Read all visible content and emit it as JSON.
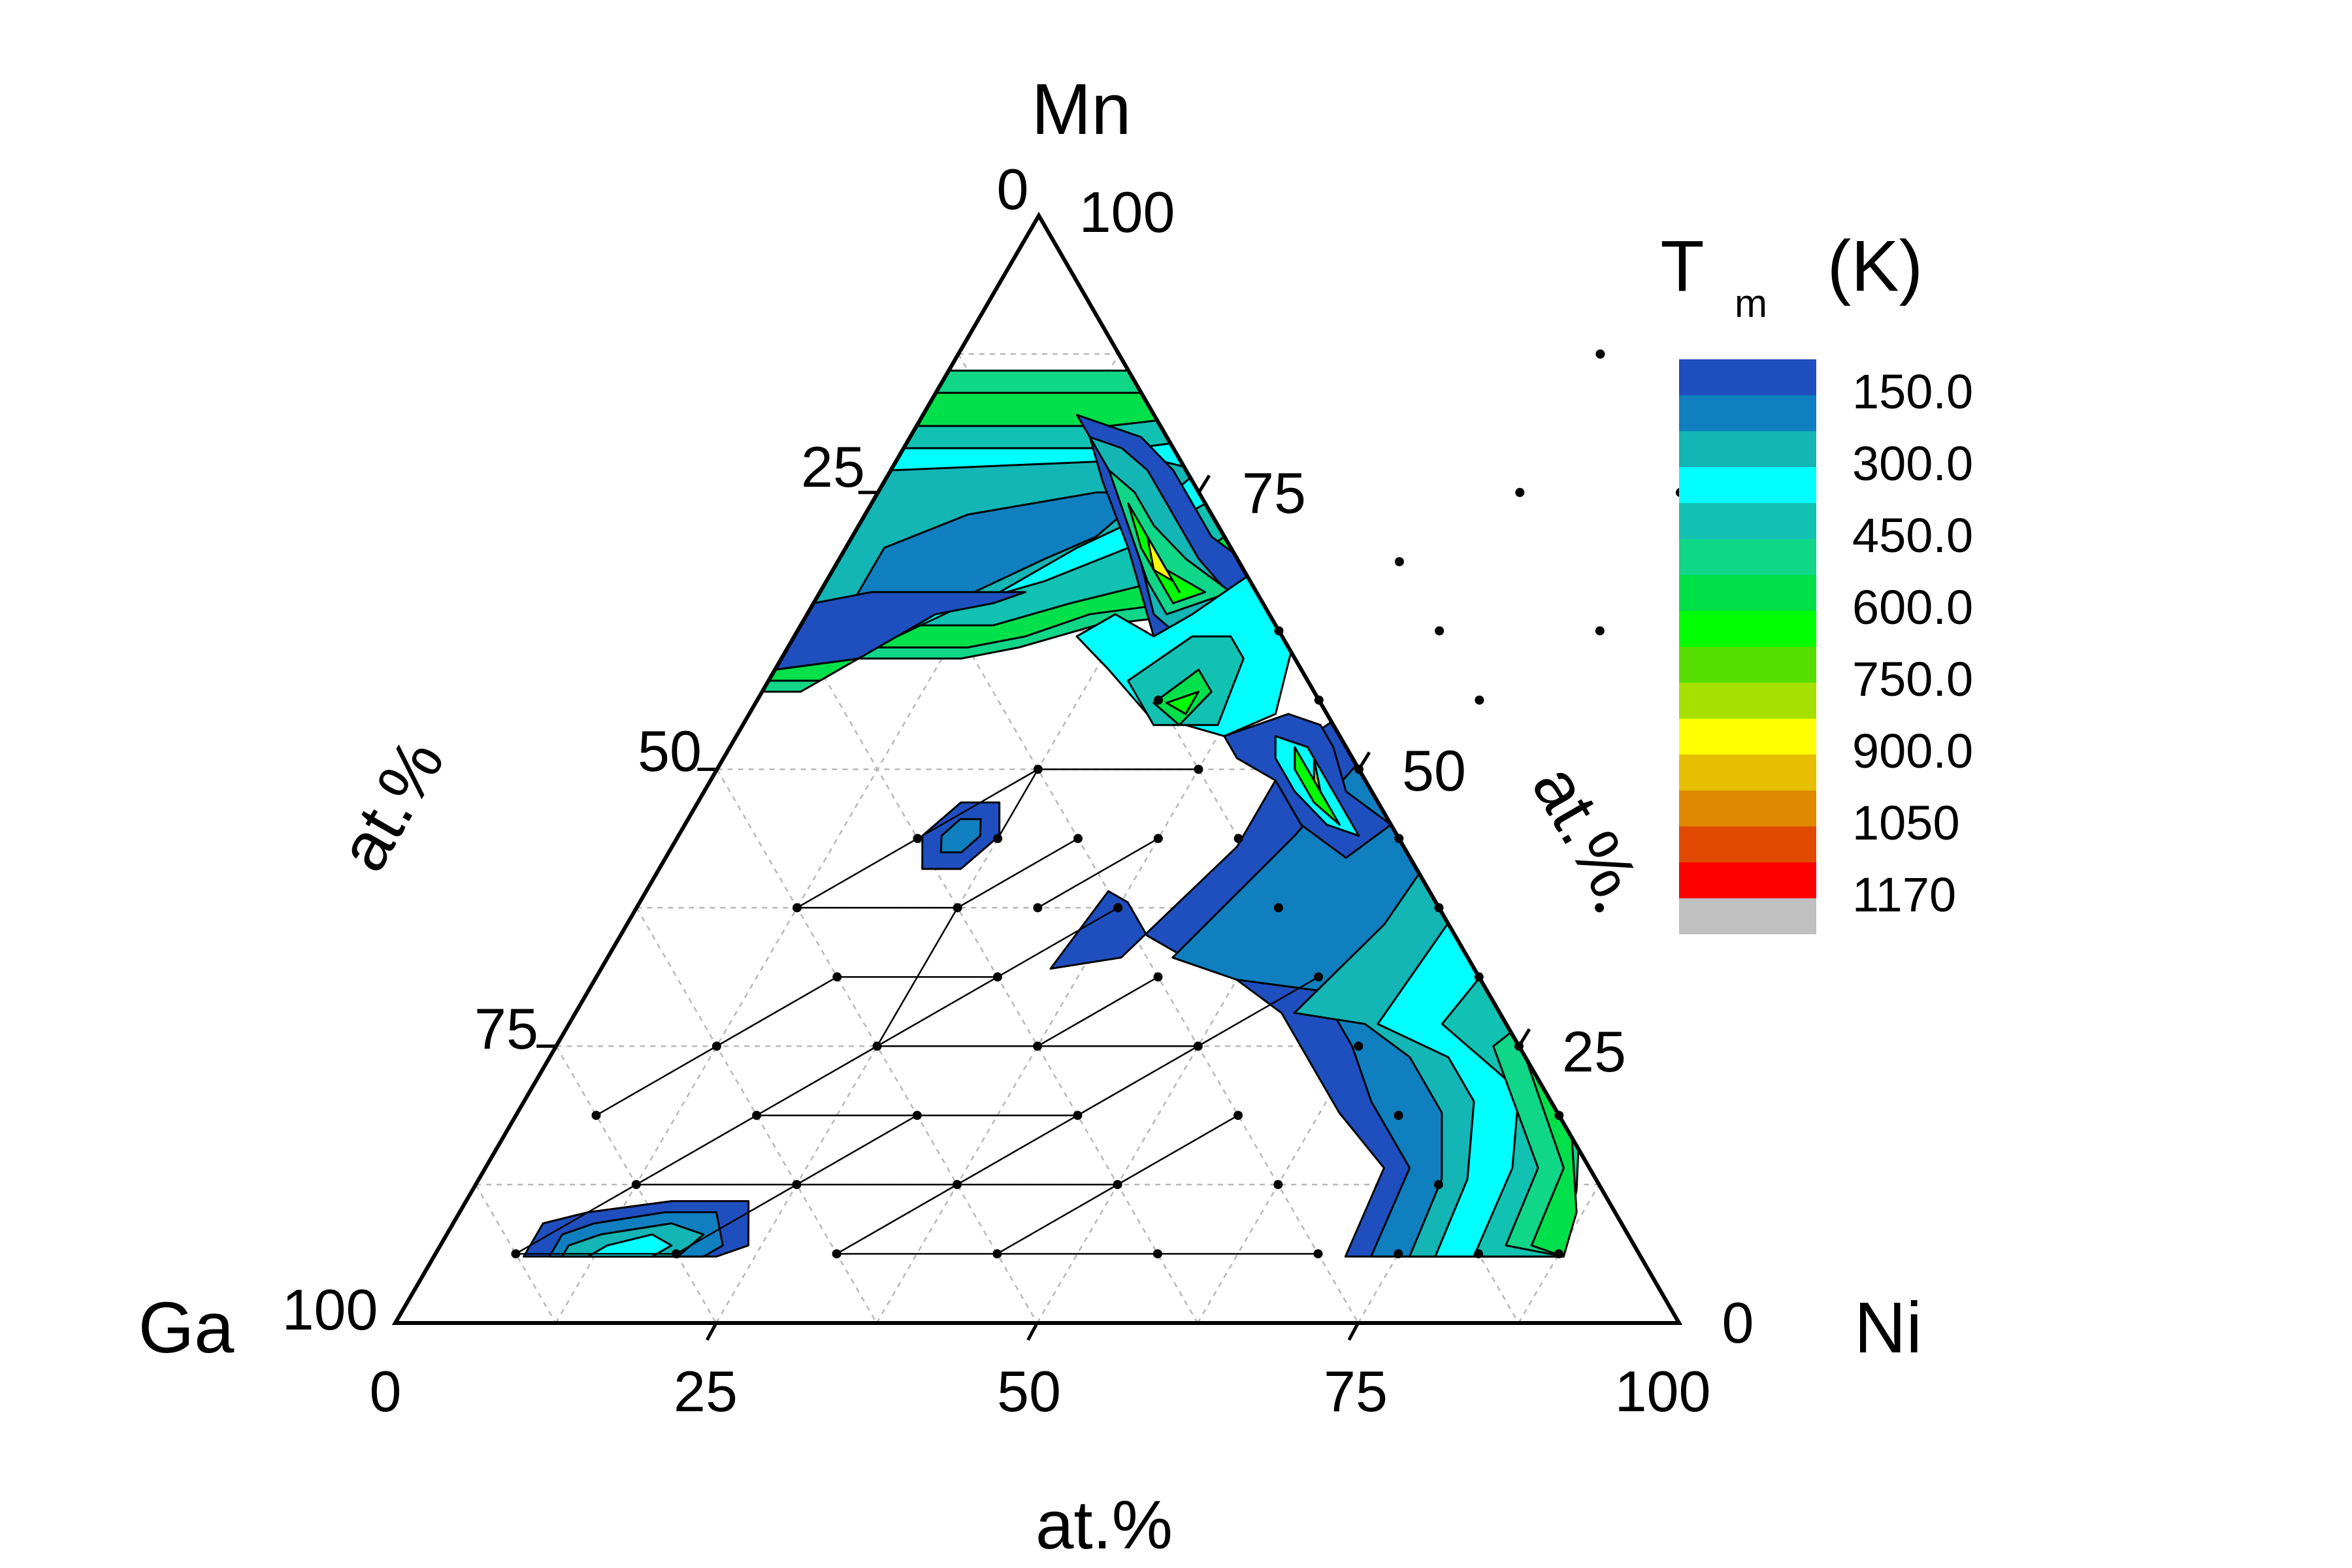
{
  "chart_data": {
    "type": "ternary-contour",
    "vertices": {
      "top": "Mn",
      "left": "Ga",
      "right": "Ni"
    },
    "axis_label": "at.%",
    "ticks": [
      "0",
      "25",
      "50",
      "75",
      "100"
    ],
    "grid_step": 12.5,
    "colorbar": {
      "title_main": "T",
      "title_sub": "m",
      "title_unit": "(K)",
      "labels": [
        "150.0",
        "300.0",
        "450.0",
        "600.0",
        "750.0",
        "900.0",
        "1050",
        "1170"
      ],
      "levels": [
        0,
        75,
        150,
        225,
        300,
        375,
        450,
        525,
        600,
        675,
        750,
        825,
        900,
        975,
        1050,
        1110,
        1170
      ],
      "colors": [
        "#1f4fbf",
        "#0f7fbf",
        "#14b5b5",
        "#00ffff",
        "#11c2b2",
        "#10d688",
        "#00e04a",
        "#00ff00",
        "#55de00",
        "#a6e000",
        "#ffff00",
        "#e6c000",
        "#e08800",
        "#e04a00",
        "#ff0000",
        "#c0c0c0"
      ]
    },
    "grid_points_ni_mn": [
      [
        50,
        87.5
      ],
      [
        62.5,
        75
      ],
      [
        50,
        75
      ],
      [
        43.75,
        68.75
      ],
      [
        43.75,
        56.25
      ],
      [
        50,
        62.5
      ],
      [
        62.5,
        62.5
      ],
      [
        56.25,
        56.25
      ],
      [
        50,
        50
      ],
      [
        37.5,
        50
      ],
      [
        37.5,
        62.5
      ],
      [
        31.25,
        56.25
      ],
      [
        18.75,
        43.75
      ],
      [
        25,
        50
      ],
      [
        31.25,
        43.75
      ],
      [
        31.25,
        31.25
      ],
      [
        37.5,
        37.5
      ],
      [
        43.75,
        43.75
      ],
      [
        50,
        37.5
      ],
      [
        56.25,
        43.75
      ],
      [
        62.5,
        37.5
      ],
      [
        56.25,
        31.25
      ],
      [
        50,
        25
      ],
      [
        62.5,
        25
      ],
      [
        56.25,
        18.75
      ],
      [
        68.75,
        31.25
      ],
      [
        75,
        25
      ],
      [
        68.75,
        18.75
      ],
      [
        62.5,
        12.5
      ],
      [
        75,
        12.5
      ],
      [
        81.25,
        18.75
      ],
      [
        75,
        6.25
      ],
      [
        87.5,
        6.25
      ],
      [
        81.25,
        6.25
      ],
      [
        68.75,
        6.25
      ],
      [
        56.25,
        6.25
      ],
      [
        43.75,
        6.25
      ],
      [
        31.25,
        6.25
      ],
      [
        18.75,
        6.25
      ],
      [
        6.25,
        6.25
      ],
      [
        12.5,
        12.5
      ],
      [
        25,
        12.5
      ],
      [
        37.5,
        12.5
      ],
      [
        50,
        12.5
      ],
      [
        6.25,
        18.75
      ],
      [
        18.75,
        18.75
      ],
      [
        31.25,
        18.75
      ],
      [
        43.75,
        18.75
      ],
      [
        12.5,
        25
      ],
      [
        25,
        25
      ],
      [
        37.5,
        25
      ],
      [
        43.75,
        31.25
      ],
      [
        18.75,
        31.25
      ],
      [
        12.5,
        37.5
      ],
      [
        25,
        37.5
      ],
      [
        31.25,
        37.5
      ],
      [
        25,
        43.75
      ],
      [
        37.5,
        43.75
      ],
      [
        75,
        37.5
      ]
    ]
  }
}
